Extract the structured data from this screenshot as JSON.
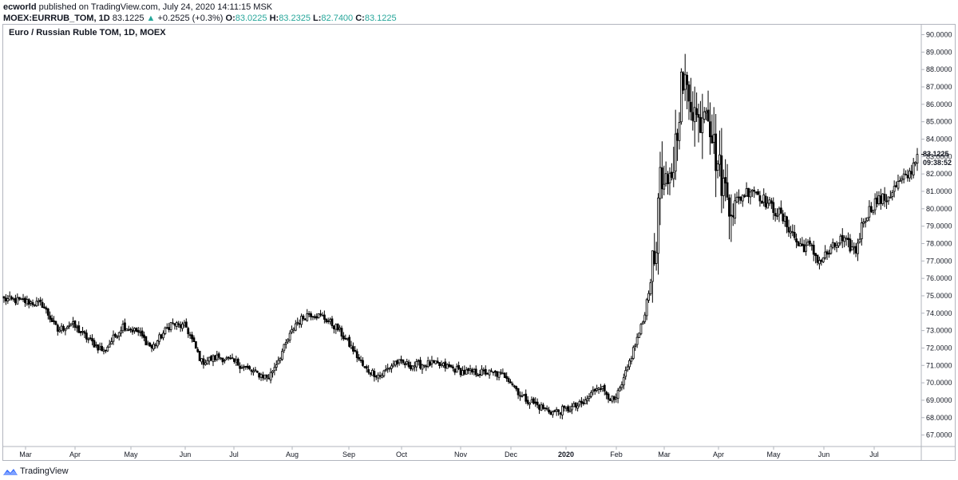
{
  "header": {
    "author": "ecworld",
    "published": "published on TradingView.com, July 24, 2020 14:11:15 MSK",
    "symbol": "MOEX:EURRUB_TOM, 1D",
    "last": "83.1225",
    "change_arrow": "▲",
    "change": "+0.2525 (+0.3%)",
    "o_label": "O:",
    "o_value": "83.0225",
    "h_label": "H:",
    "h_value": "83.2325",
    "l_label": "L:",
    "l_value": "82.7400",
    "c_label": "C:",
    "c_value": "83.1225"
  },
  "pane_title": "Euro / Russian Ruble TOM, 1D, MOEX",
  "price_label": {
    "price": "83.1225",
    "countdown": "09:38:52"
  },
  "footer": {
    "brand": "TradingView",
    "logo_icon": "tradingview-logo-icon"
  },
  "chart_data": {
    "type": "candlestick",
    "title": "Euro / Russian Ruble TOM, 1D, MOEX",
    "ylim": [
      66.6,
      90.6
    ],
    "y_ticks": [
      "67.0000",
      "68.0000",
      "69.0000",
      "70.0000",
      "71.0000",
      "72.0000",
      "73.0000",
      "74.0000",
      "75.0000",
      "76.0000",
      "77.0000",
      "78.0000",
      "79.0000",
      "80.0000",
      "81.0000",
      "82.0000",
      "83.0000",
      "84.0000",
      "85.0000",
      "86.0000",
      "87.0000",
      "88.0000",
      "89.0000",
      "90.0000"
    ],
    "x_ticks": [
      "Mar",
      "Apr",
      "May",
      "Jun",
      "Jul",
      "Aug",
      "Sep",
      "Oct",
      "Nov",
      "Dec",
      "2020",
      "Feb",
      "Mar",
      "Apr",
      "May",
      "Jun",
      "Jul"
    ],
    "x_tick_bold": [
      false,
      false,
      false,
      false,
      false,
      false,
      false,
      false,
      false,
      false,
      true,
      false,
      false,
      false,
      false,
      false,
      false
    ],
    "keypoints": [
      [
        0,
        74.8
      ],
      [
        10,
        74.7
      ],
      [
        20,
        74.5
      ],
      [
        28,
        73.0
      ],
      [
        35,
        73.4
      ],
      [
        45,
        72.4
      ],
      [
        52,
        71.8
      ],
      [
        62,
        73.3
      ],
      [
        70,
        72.9
      ],
      [
        77,
        72.0
      ],
      [
        87,
        73.4
      ],
      [
        95,
        73.2
      ],
      [
        103,
        71.2
      ],
      [
        112,
        71.5
      ],
      [
        122,
        71.1
      ],
      [
        130,
        70.6
      ],
      [
        138,
        70.3
      ],
      [
        146,
        72.0
      ],
      [
        152,
        73.4
      ],
      [
        159,
        74.0
      ],
      [
        166,
        73.8
      ],
      [
        174,
        73.1
      ],
      [
        182,
        71.9
      ],
      [
        188,
        70.8
      ],
      [
        196,
        70.4
      ],
      [
        204,
        71.2
      ],
      [
        212,
        71.0
      ],
      [
        222,
        71.1
      ],
      [
        232,
        70.9
      ],
      [
        240,
        70.6
      ],
      [
        252,
        70.6
      ],
      [
        262,
        70.4
      ],
      [
        270,
        69.2
      ],
      [
        278,
        68.7
      ],
      [
        286,
        68.3
      ],
      [
        294,
        68.5
      ],
      [
        302,
        68.8
      ],
      [
        310,
        69.9
      ],
      [
        318,
        68.9
      ],
      [
        322,
        69.8
      ],
      [
        328,
        71.9
      ],
      [
        333,
        73.5
      ],
      [
        338,
        76.5
      ],
      [
        340,
        77.6
      ],
      [
        341,
        81.6
      ],
      [
        346,
        80.8
      ],
      [
        349,
        82.7
      ],
      [
        353,
        87.1
      ],
      [
        357,
        86.7
      ],
      [
        362,
        84.9
      ],
      [
        366,
        86.5
      ],
      [
        370,
        83.5
      ],
      [
        375,
        81.3
      ],
      [
        380,
        80.2
      ],
      [
        385,
        80.8
      ],
      [
        390,
        81.2
      ],
      [
        397,
        80.4
      ],
      [
        404,
        79.7
      ],
      [
        410,
        78.8
      ],
      [
        414,
        77.9
      ],
      [
        420,
        77.8
      ],
      [
        425,
        77.0
      ],
      [
        430,
        77.5
      ],
      [
        436,
        78.2
      ],
      [
        440,
        77.9
      ],
      [
        444,
        77.6
      ],
      [
        448,
        79.4
      ],
      [
        454,
        80.4
      ],
      [
        460,
        80.6
      ],
      [
        466,
        81.4
      ],
      [
        472,
        82.0
      ],
      [
        476,
        83.1225
      ]
    ],
    "last_price": 83.1225
  },
  "colors": {
    "candle": "#000000",
    "background": "#ffffff",
    "axis": "#b2b5be",
    "text": "#131722",
    "green": "#26a69a",
    "logo": "#2962ff"
  }
}
